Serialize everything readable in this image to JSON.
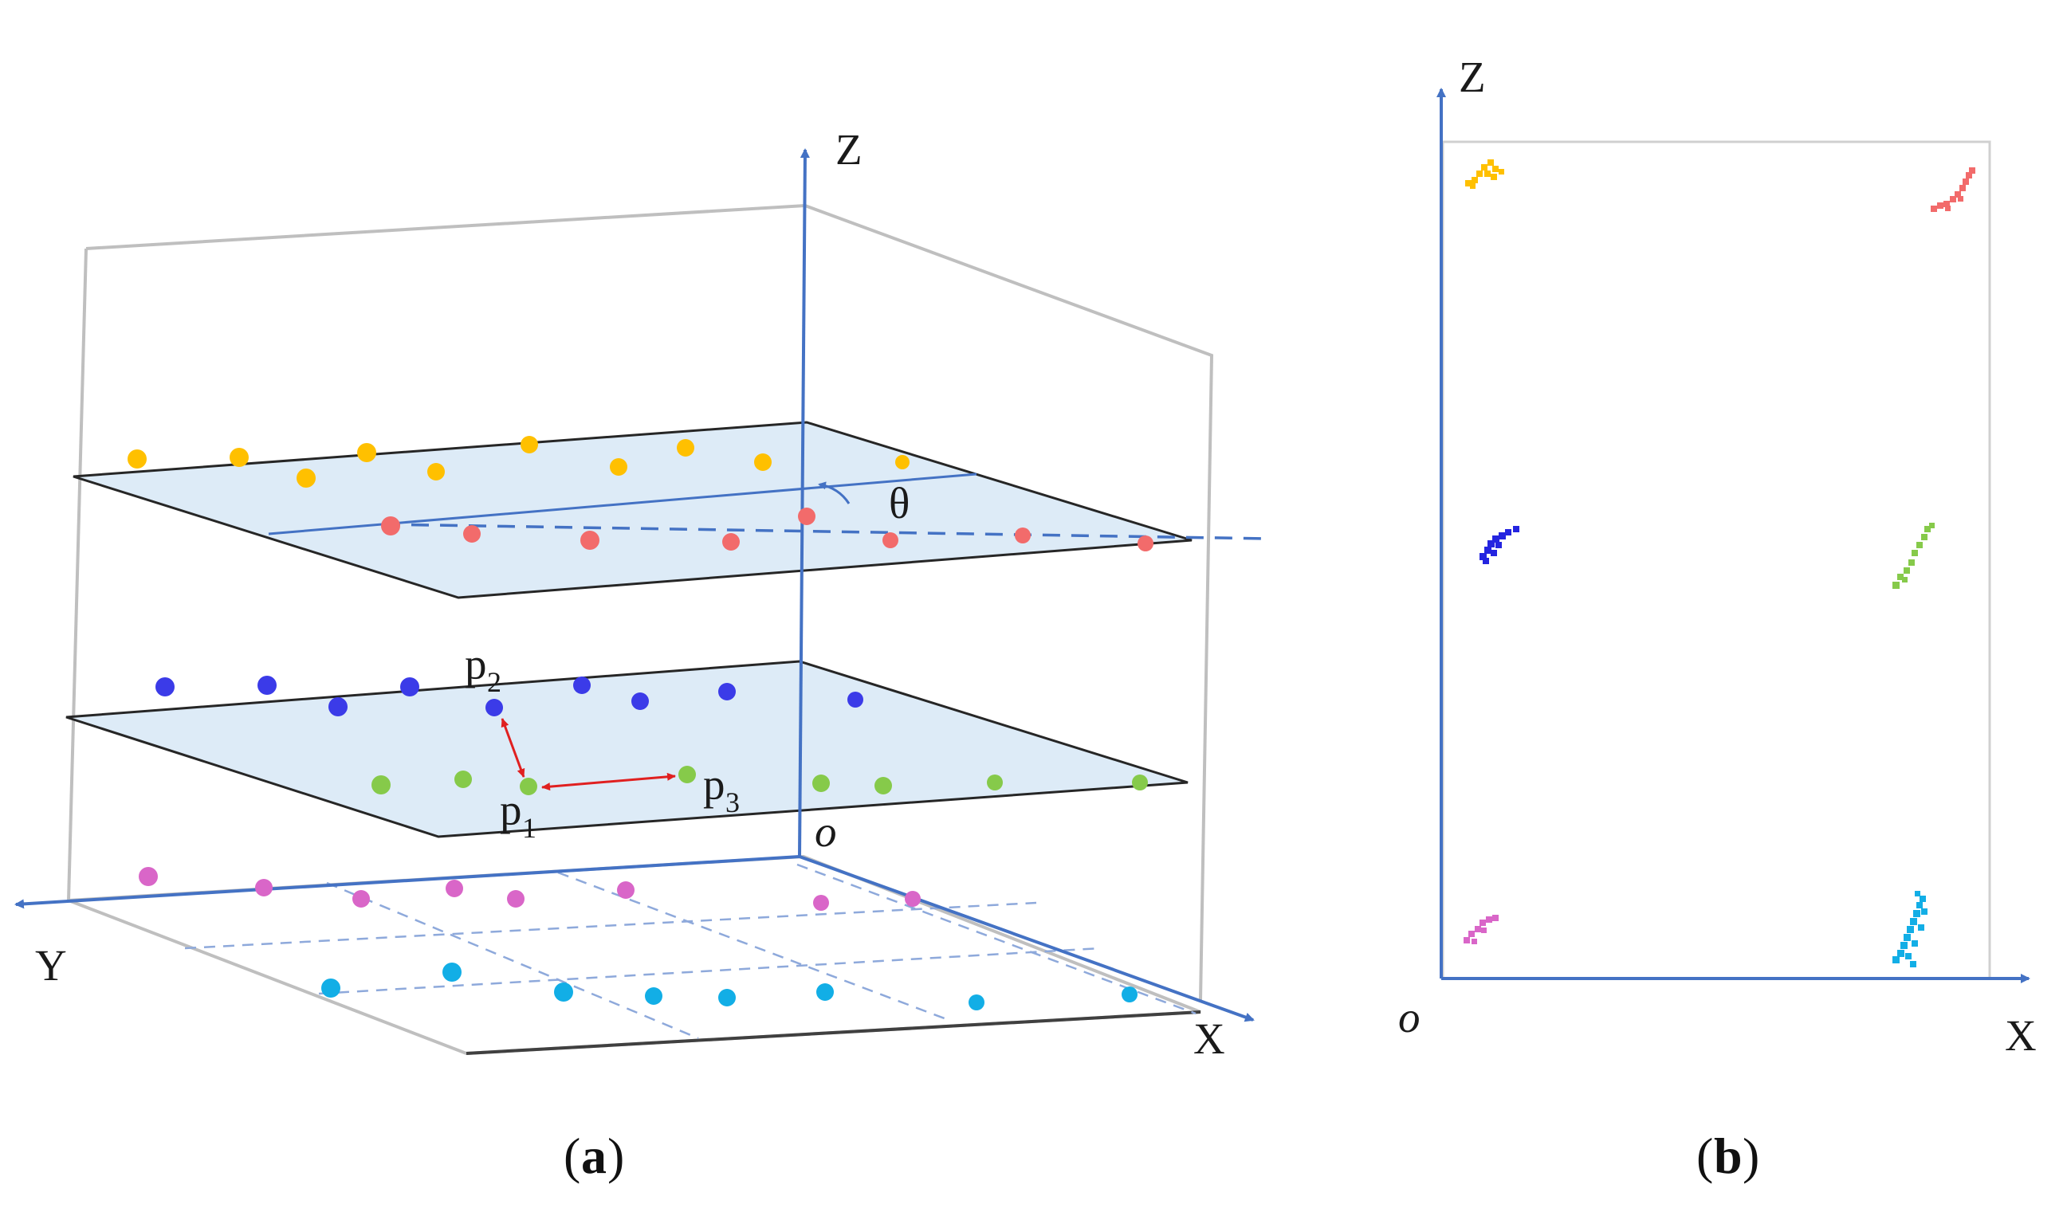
{
  "panel_a": {
    "axes": {
      "z": "Z",
      "y": "Y",
      "x": "X",
      "origin": "o"
    },
    "angle_label": "θ",
    "points": {
      "p": "p",
      "p1_sub": "1",
      "p2_sub": "2",
      "p3_sub": "3"
    },
    "caption": {
      "open": "(",
      "letter": "a",
      "close": ")"
    }
  },
  "panel_b": {
    "axes": {
      "z": "Z",
      "x": "X",
      "origin": "o"
    },
    "caption": {
      "open": "(",
      "letter": "b",
      "close": ")"
    }
  },
  "colors": {
    "axis": "#4472C4",
    "plane_fill": "#DDEBF7",
    "box": "#BFBFBF",
    "orange": "#FFC000",
    "red": "#F26B6B",
    "blue": "#3B3BE8",
    "green": "#86CA4A",
    "magenta": "#D966C8",
    "cyan": "#12AEE6",
    "arrow": "#E02020"
  }
}
